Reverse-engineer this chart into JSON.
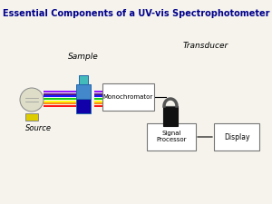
{
  "title": "Essential Components of a UV-vis Spectrophotometer",
  "title_color": "#00008B",
  "title_fontsize": 7.0,
  "bg_color": "#F5F3EC",
  "labels": {
    "source": "Source",
    "sample": "Sample",
    "transducer": "Transducer",
    "monochromator": "Monochromator",
    "signal_processor": "Signal\nProcessor",
    "display": "Display"
  },
  "rainbow_colors": [
    "#FF0000",
    "#FF7F00",
    "#FFFF00",
    "#00CC00",
    "#0000FF",
    "#4B0082",
    "#8B00FF"
  ],
  "source_bulb_color": "#DDDDC8",
  "source_base_color": "#DDCC00"
}
